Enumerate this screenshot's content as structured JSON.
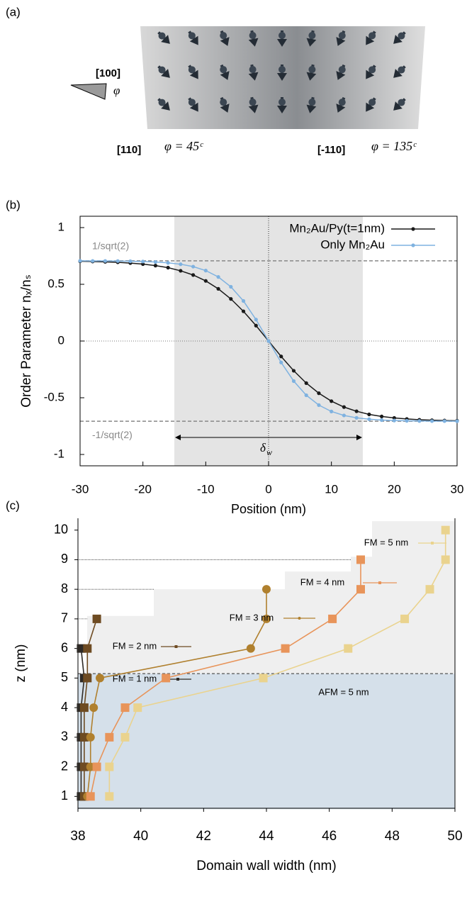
{
  "panel_a": {
    "label": "(a)",
    "axis_label": "[100]",
    "angle_symbol": "φ",
    "left_direction": "[110]",
    "left_angle": "φ = 45ᶜ",
    "right_direction": "[-110]",
    "right_angle": "φ = 135ᶜ"
  },
  "chart_data": [
    {
      "type": "line",
      "label": "(b)",
      "xlabel": "Position (nm)",
      "ylabel": "Order Parameter nₓ/nₛ",
      "x": [
        -30,
        -28,
        -26,
        -24,
        -22,
        -20,
        -18,
        -16,
        -14,
        -12,
        -10,
        -8,
        -6,
        -4,
        -2,
        0,
        2,
        4,
        6,
        8,
        10,
        12,
        14,
        16,
        18,
        20,
        22,
        24,
        26,
        28,
        30
      ],
      "series": [
        {
          "name": "Mn₂Au/Py(t=1nm)",
          "color": "#1a1a1a",
          "values": [
            0.703,
            0.701,
            0.698,
            0.694,
            0.687,
            0.678,
            0.665,
            0.647,
            0.619,
            0.582,
            0.53,
            0.46,
            0.371,
            0.262,
            0.136,
            0,
            -0.136,
            -0.262,
            -0.371,
            -0.46,
            -0.53,
            -0.582,
            -0.619,
            -0.647,
            -0.665,
            -0.678,
            -0.687,
            -0.694,
            -0.698,
            -0.701,
            -0.703
          ]
        },
        {
          "name": "Only Mn₂Au",
          "color": "#7fb2e0",
          "values": [
            0.707,
            0.706,
            0.706,
            0.705,
            0.703,
            0.701,
            0.697,
            0.689,
            0.677,
            0.656,
            0.621,
            0.565,
            0.478,
            0.353,
            0.189,
            0,
            -0.189,
            -0.353,
            -0.478,
            -0.565,
            -0.621,
            -0.656,
            -0.677,
            -0.689,
            -0.697,
            -0.701,
            -0.703,
            -0.705,
            -0.706,
            -0.706,
            -0.707
          ]
        }
      ],
      "xlim": [
        -30,
        30
      ],
      "ylim": [
        -1.1,
        1.1
      ],
      "xticks": [
        -30,
        -20,
        -10,
        0,
        10,
        20,
        30
      ],
      "yticks": [
        -1,
        -0.5,
        0,
        0.5,
        1
      ],
      "hlines": [
        {
          "value": 0.707,
          "label": "1/sqrt(2)"
        },
        {
          "value": -0.707,
          "label": "-1/sqrt(2)"
        }
      ],
      "shade": [
        -15,
        15
      ],
      "width_symbol": "δ",
      "width_subscript": "w"
    },
    {
      "type": "line",
      "label": "(c)",
      "xlabel": "Domain wall width (nm)",
      "ylabel": "z (nm)",
      "series": [
        {
          "name": "FM = 1 nm",
          "color": "#2e2a26",
          "marker": "square",
          "z": [
            1,
            2,
            3,
            4,
            5,
            6
          ],
          "values": [
            38.1,
            38.1,
            38.1,
            38.1,
            38.2,
            38.1
          ]
        },
        {
          "name": "FM = 2 nm",
          "color": "#6e4b22",
          "marker": "square",
          "z": [
            1,
            2,
            3,
            4,
            5,
            6,
            7
          ],
          "values": [
            38.2,
            38.2,
            38.2,
            38.2,
            38.3,
            38.3,
            38.6
          ]
        },
        {
          "name": "FM = 3 nm",
          "color": "#b0802e",
          "marker": "circle",
          "z": [
            1,
            2,
            3,
            4,
            5,
            6,
            7,
            8
          ],
          "values": [
            38.3,
            38.4,
            38.4,
            38.5,
            38.7,
            43.5,
            44.0,
            44.0
          ]
        },
        {
          "name": "FM = 4 nm",
          "color": "#e8945a",
          "marker": "square",
          "z": [
            1,
            2,
            3,
            4,
            5,
            6,
            7,
            8,
            9
          ],
          "values": [
            38.4,
            38.6,
            39.0,
            39.5,
            40.8,
            44.6,
            46.1,
            47.0,
            47.0
          ]
        },
        {
          "name": "FM = 5 nm",
          "color": "#ead38e",
          "marker": "square",
          "z": [
            1,
            2,
            3,
            4,
            5,
            6,
            7,
            8,
            9,
            10
          ],
          "values": [
            39.0,
            39.0,
            39.5,
            39.9,
            43.9,
            46.6,
            48.4,
            49.2,
            49.7,
            49.7
          ]
        }
      ],
      "xlim": [
        38,
        50
      ],
      "ylim": [
        0.6,
        10.4
      ],
      "xticks": [
        38,
        40,
        42,
        44,
        46,
        48,
        50
      ],
      "yticks": [
        1,
        2,
        3,
        4,
        5,
        6,
        7,
        8,
        9,
        10
      ],
      "hline": 5.15,
      "annotation": "AFM = 5 nm"
    }
  ]
}
